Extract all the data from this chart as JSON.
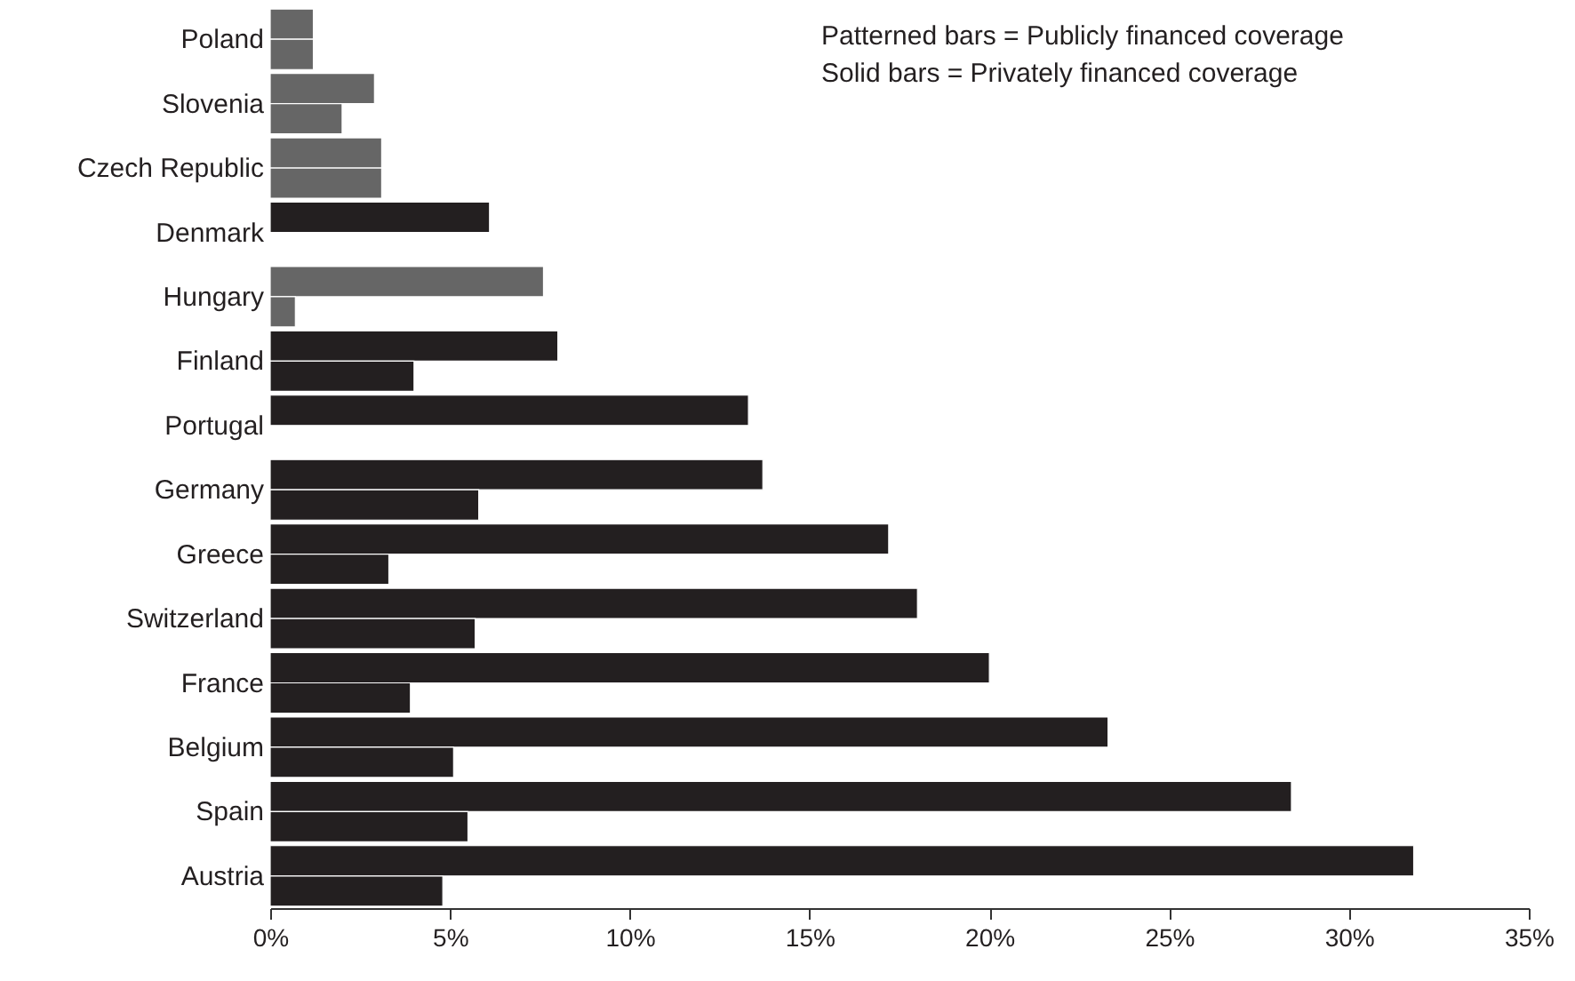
{
  "chart_data": {
    "type": "bar",
    "orientation": "horizontal",
    "categories": [
      "Poland",
      "Slovenia",
      "Czech Republic",
      "Denmark",
      "Hungary",
      "Finland",
      "Portugal",
      "Germany",
      "Greece",
      "Switzerland",
      "France",
      "Belgium",
      "Spain",
      "Austria"
    ],
    "series": [
      {
        "colors": [
          "#666666",
          "#666666",
          "#666666",
          "#231f20",
          "#666666",
          "#231f20",
          "#231f20",
          "#231f20",
          "#231f20",
          "#231f20",
          "#231f20",
          "#231f20",
          "#231f20",
          "#231f20"
        ],
        "values": [
          1.2,
          2.9,
          3.1,
          6.1,
          7.6,
          8.0,
          13.3,
          13.7,
          17.2,
          18.0,
          20.0,
          23.3,
          28.4,
          31.8
        ]
      },
      {
        "colors": [
          "#666666",
          "#666666",
          "#666666",
          null,
          "#666666",
          "#231f20",
          null,
          "#231f20",
          "#231f20",
          "#231f20",
          "#231f20",
          "#231f20",
          "#231f20",
          "#231f20"
        ],
        "values": [
          1.2,
          2.0,
          3.1,
          null,
          0.7,
          4.0,
          null,
          5.8,
          3.3,
          5.7,
          3.9,
          5.1,
          5.5,
          4.8
        ]
      }
    ],
    "xlim": [
      0,
      35
    ],
    "xticks": [
      {
        "value": 0,
        "label": "0%"
      },
      {
        "value": 5,
        "label": "5%"
      },
      {
        "value": 10,
        "label": "10%"
      },
      {
        "value": 15,
        "label": "15%"
      },
      {
        "value": 20,
        "label": "20%"
      },
      {
        "value": 25,
        "label": "25%"
      },
      {
        "value": 30,
        "label": "30%"
      },
      {
        "value": 35,
        "label": "35%"
      }
    ],
    "annotations": [
      "Patterned bars = Publicly financed coverage",
      "Solid bars = Privately financed coverage"
    ],
    "grid": false
  }
}
